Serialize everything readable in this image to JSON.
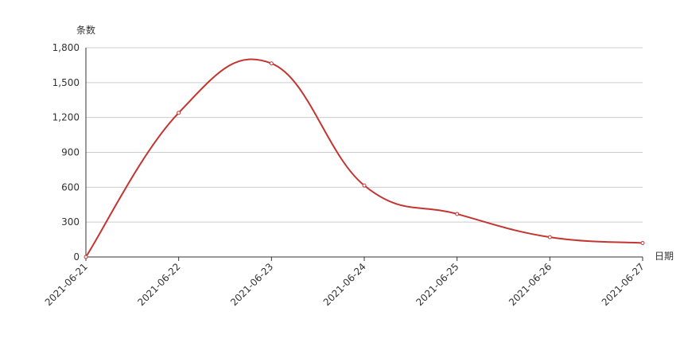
{
  "chart_data": {
    "type": "line",
    "smooth": true,
    "y_axis_label": "条数",
    "x_axis_label": "日期",
    "categories": [
      "2021-06-21",
      "2021-06-22",
      "2021-06-23",
      "2021-06-24",
      "2021-06-25",
      "2021-06-26",
      "2021-06-27"
    ],
    "series": [
      {
        "color": "#c23531",
        "values": [
          0,
          1240,
          1665,
          615,
          370,
          170,
          120
        ]
      }
    ],
    "ylim": [
      0,
      1800
    ],
    "yticks": [
      0,
      300,
      600,
      900,
      {
        "value": 1200,
        "label": "1,200"
      },
      {
        "value": 1500,
        "label": "1,500"
      },
      {
        "value": 1800,
        "label": "1,800"
      }
    ],
    "grid": true
  }
}
